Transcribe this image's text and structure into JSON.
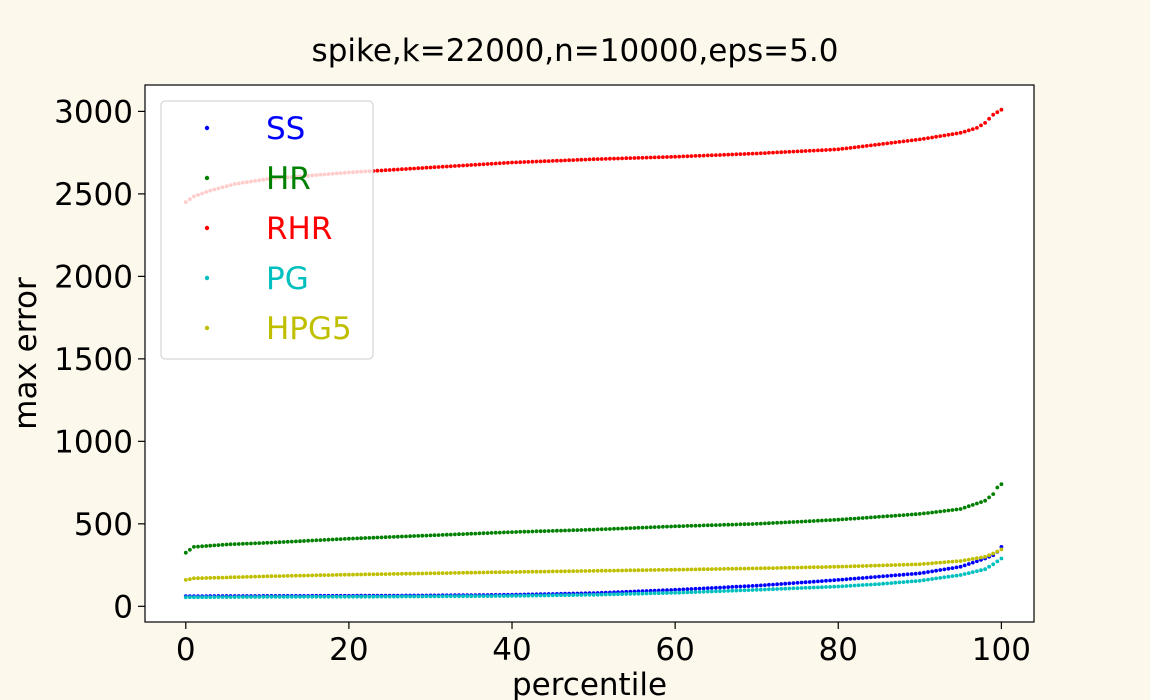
{
  "chart_data": {
    "type": "scatter",
    "title": "spike,k=22000,n=10000,eps=5.0",
    "xlabel": "percentile",
    "ylabel": "max error",
    "xlim": [
      -5,
      104
    ],
    "ylim": [
      -95,
      3160
    ],
    "xticks": [
      0,
      20,
      40,
      60,
      80,
      100
    ],
    "yticks": [
      0,
      500,
      1000,
      1500,
      2000,
      2500,
      3000
    ],
    "xtick_labels": [
      "0",
      "20",
      "40",
      "60",
      "80",
      "100"
    ],
    "ytick_labels": [
      "0",
      "500",
      "1000",
      "1500",
      "2000",
      "2500",
      "3000"
    ],
    "grid": false,
    "legend_position": "top-left",
    "series": [
      {
        "name": "SS",
        "color": "#0000ff",
        "x": [
          0,
          10,
          20,
          30,
          40,
          50,
          60,
          70,
          80,
          85,
          90,
          95,
          98,
          99,
          99.5,
          100
        ],
        "y": [
          62,
          63,
          64,
          66,
          70,
          80,
          100,
          125,
          160,
          180,
          200,
          240,
          290,
          310,
          330,
          360
        ]
      },
      {
        "name": "HR",
        "color": "#008000",
        "x": [
          0,
          1,
          5,
          10,
          20,
          30,
          40,
          50,
          60,
          70,
          80,
          90,
          95,
          98,
          99,
          99.5,
          100
        ],
        "y": [
          325,
          360,
          375,
          385,
          410,
          430,
          450,
          465,
          485,
          500,
          525,
          560,
          590,
          640,
          680,
          720,
          740
        ]
      },
      {
        "name": "RHR",
        "color": "#ff0000",
        "x": [
          0,
          1,
          3,
          6,
          10,
          15,
          20,
          30,
          40,
          50,
          60,
          70,
          80,
          90,
          95,
          97,
          98,
          99,
          100
        ],
        "y": [
          2450,
          2485,
          2520,
          2560,
          2590,
          2610,
          2630,
          2660,
          2690,
          2710,
          2725,
          2745,
          2770,
          2830,
          2870,
          2900,
          2930,
          2980,
          3010
        ]
      },
      {
        "name": "PG",
        "color": "#00bfbf",
        "x": [
          0,
          10,
          20,
          30,
          40,
          50,
          60,
          70,
          80,
          85,
          90,
          95,
          98,
          99,
          100
        ],
        "y": [
          55,
          57,
          58,
          60,
          63,
          70,
          82,
          100,
          120,
          135,
          155,
          190,
          225,
          255,
          290
        ]
      },
      {
        "name": "HPG5",
        "color": "#bfbf00",
        "x": [
          0,
          1,
          5,
          10,
          20,
          30,
          40,
          50,
          60,
          70,
          80,
          90,
          95,
          98,
          99,
          100
        ],
        "y": [
          160,
          170,
          175,
          182,
          192,
          200,
          208,
          215,
          222,
          230,
          240,
          255,
          275,
          300,
          320,
          345
        ]
      }
    ]
  }
}
